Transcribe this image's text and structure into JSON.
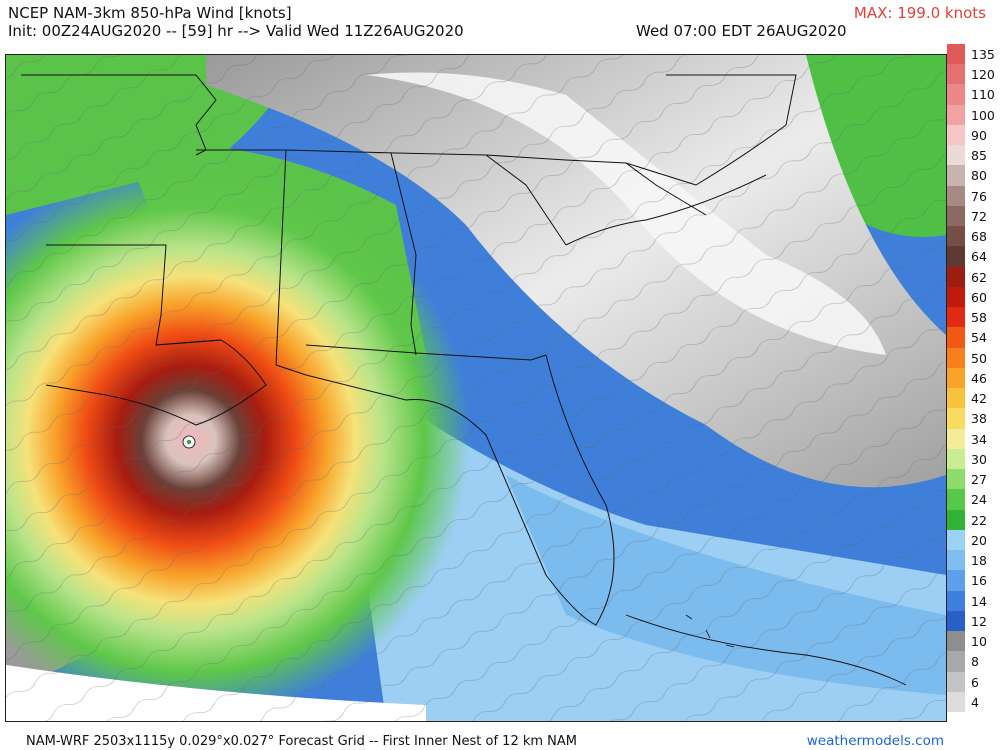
{
  "header": {
    "title": "NCEP NAM-3km 850-hPa Wind [knots]",
    "init": "Init: 00Z24AUG2020 -- [59] hr --> Valid Wed 11Z26AUG2020",
    "valid_local": "Wed 07:00 EDT 26AUG2020",
    "max_label": "MAX: 199.0 knots"
  },
  "legend": {
    "labels": [
      "135",
      "120",
      "110",
      "100",
      "90",
      "85",
      "80",
      "76",
      "72",
      "68",
      "64",
      "62",
      "60",
      "58",
      "54",
      "50",
      "46",
      "42",
      "38",
      "34",
      "30",
      "27",
      "24",
      "22",
      "20",
      "18",
      "16",
      "14",
      "12",
      "10",
      "8",
      "6",
      "4"
    ],
    "colors": [
      "#e05a5a",
      "#e47070",
      "#ec8888",
      "#f2a2a2",
      "#f7c6c6",
      "#eadbd6",
      "#c8b3ad",
      "#a88a84",
      "#8c6962",
      "#754f47",
      "#5e3a33",
      "#9e1c12",
      "#c01a0f",
      "#e22a12",
      "#f25a14",
      "#f8801c",
      "#f9a329",
      "#f8c23c",
      "#fadb62",
      "#f4ec9a",
      "#c9ec94",
      "#8fdc6c",
      "#58c84a",
      "#31b338",
      "#9cd2f5",
      "#7fbcf0",
      "#5e9fea",
      "#3e80e0",
      "#2a5fc8",
      "#8e8e8e",
      "#a8a8a8",
      "#c4c4c4",
      "#dcdcdc"
    ]
  },
  "map": {
    "description_hidden": "",
    "hurricane_center_marker": "eye-marker"
  },
  "footer": {
    "grid_info": "NAM-WRF 2503x1115y 0.029°x0.027° Forecast Grid -- First Inner Nest of 12 km NAM",
    "site": "weathermodels.com"
  }
}
